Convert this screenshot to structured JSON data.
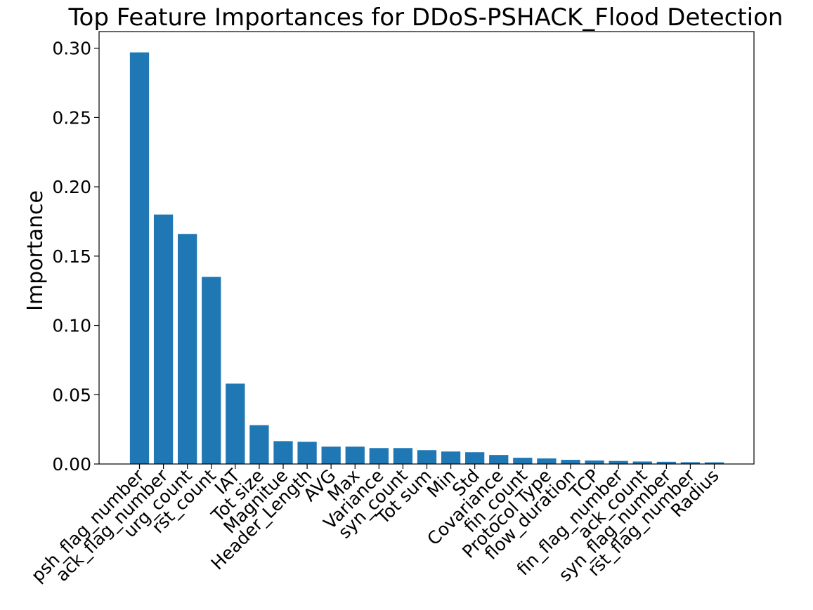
{
  "chart_data": {
    "type": "bar",
    "title": "Top Feature Importances for DDoS-PSHACK_Flood Detection",
    "xlabel": "",
    "ylabel": "Importance",
    "ylim": [
      0,
      0.312
    ],
    "yticks": [
      "0.00",
      "0.05",
      "0.10",
      "0.15",
      "0.20",
      "0.25",
      "0.30"
    ],
    "grid": false,
    "bar_color": "#1f77b4",
    "categories": [
      "psh_flag_number",
      "ack_flag_number",
      "urg_count",
      "rst_count",
      "IAT",
      "Tot size",
      "Magnitue",
      "Header_Length",
      "AVG",
      "Max",
      "Variance",
      "syn_count",
      "Tot sum",
      "Min",
      "Std",
      "Covariance",
      "fin_count",
      "Protocol Type",
      "flow_duration",
      "TCP",
      "fin_flag_number",
      "ack_count",
      "syn_flag_number",
      "rst_flag_number",
      "Radius"
    ],
    "values": [
      0.297,
      0.18,
      0.166,
      0.135,
      0.058,
      0.028,
      0.0165,
      0.016,
      0.0125,
      0.0125,
      0.0115,
      0.0115,
      0.01,
      0.009,
      0.0085,
      0.0065,
      0.0045,
      0.004,
      0.003,
      0.0025,
      0.0022,
      0.0018,
      0.0016,
      0.0013,
      0.0012
    ]
  }
}
